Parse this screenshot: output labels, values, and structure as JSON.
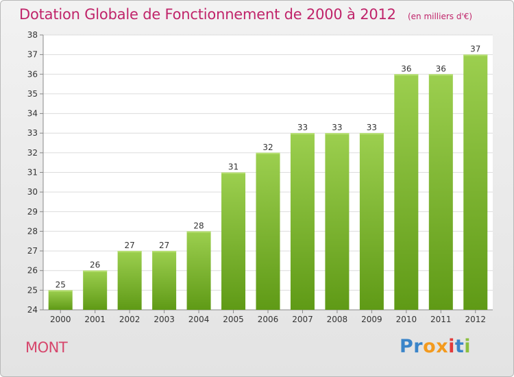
{
  "chart_data": {
    "type": "bar",
    "title": "Dotation Globale de Fonctionnement de 2000 à 2012",
    "subtitle": "(en milliers d'€)",
    "categories": [
      "2000",
      "2001",
      "2002",
      "2003",
      "2004",
      "2005",
      "2006",
      "2007",
      "2008",
      "2009",
      "2010",
      "2011",
      "2012"
    ],
    "values": [
      25,
      26,
      27,
      27,
      28,
      31,
      32,
      33,
      33,
      33,
      36,
      36,
      37
    ],
    "ylim": [
      24,
      38
    ],
    "yticks": [
      24,
      25,
      26,
      27,
      28,
      29,
      30,
      31,
      32,
      33,
      34,
      35,
      36,
      37,
      38
    ],
    "grid": true,
    "bar_color_top": "#9ccf4f",
    "bar_color_bottom": "#5f9a16",
    "title_color": "#c0246a"
  },
  "footer": {
    "commune": "MONT",
    "brand": "Proxiti"
  },
  "brand_letter_colors": [
    "#3a84c9",
    "#3a84c9",
    "#f39a1e",
    "#f39a1e",
    "#e23b3b",
    "#3a84c9",
    "#8cbf3f"
  ]
}
